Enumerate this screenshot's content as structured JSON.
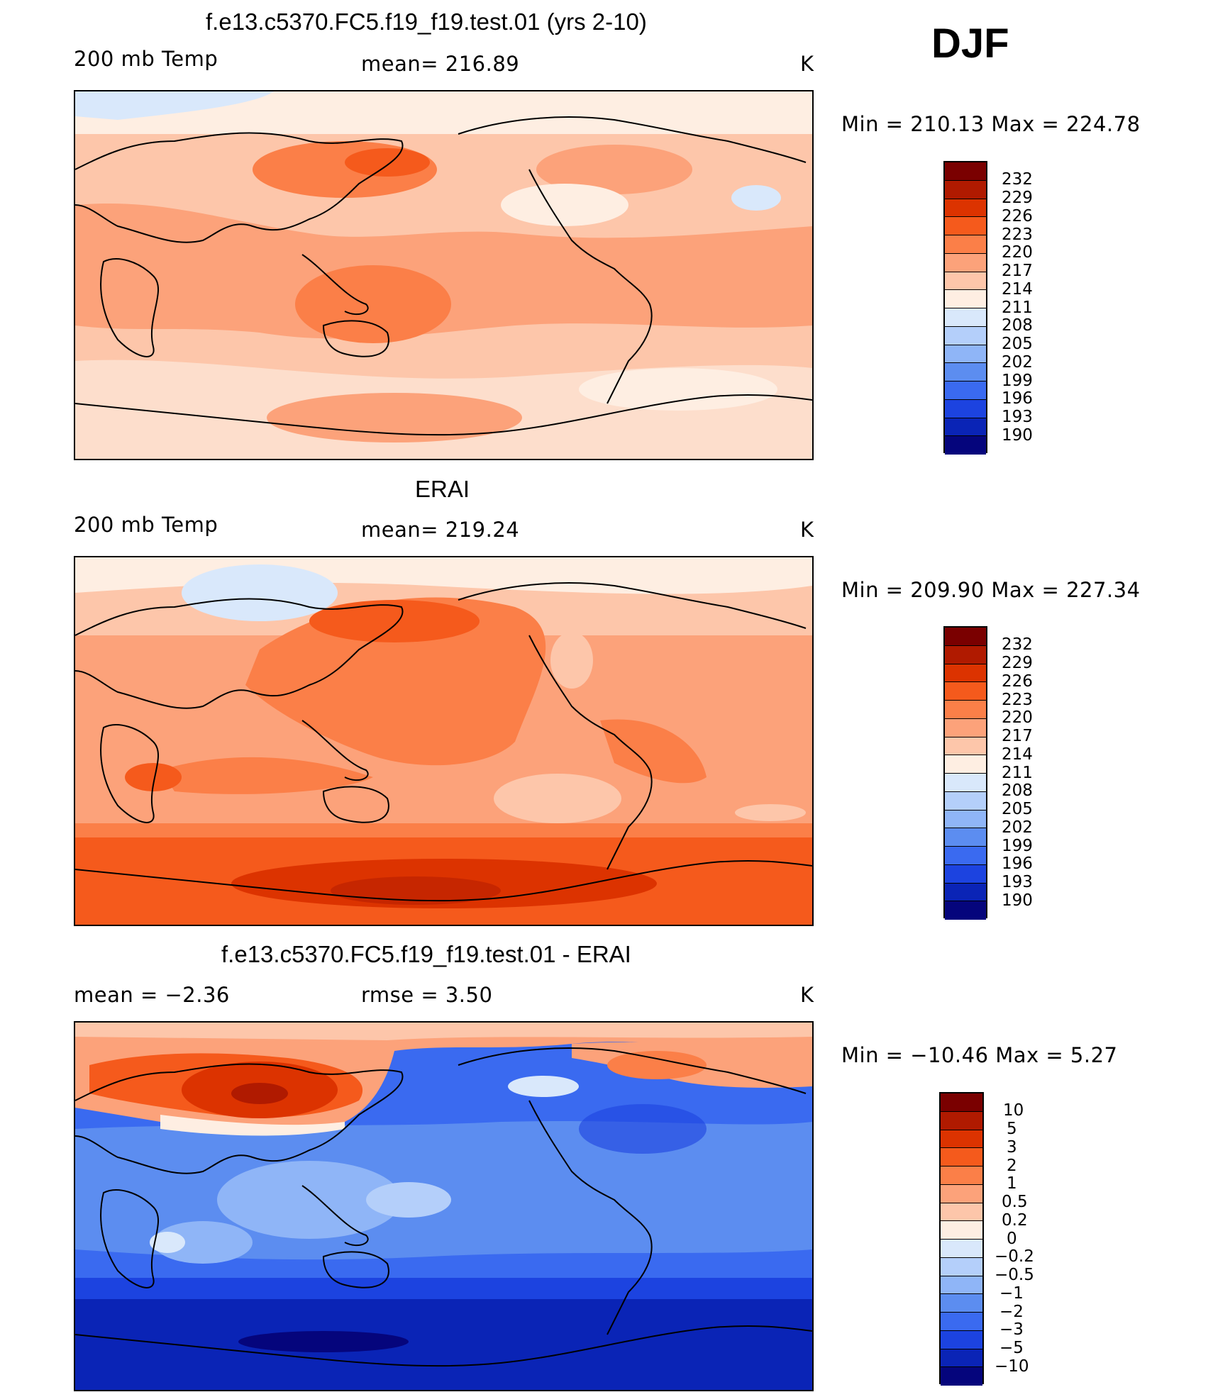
{
  "season": "DJF",
  "panels": [
    {
      "title": "f.e13.c5370.FC5.f19_f19.test.01 (yrs 2-10)",
      "left_label": "200 mb Temp",
      "center_label": "mean=  216.89",
      "units": "K",
      "minmax": "Min  =  210.13  Max  =  224.78",
      "colorbar": {
        "labels": [
          "232",
          "229",
          "226",
          "223",
          "220",
          "217",
          "214",
          "211",
          "208",
          "205",
          "202",
          "199",
          "196",
          "193",
          "190"
        ],
        "colors": [
          "#7a0000",
          "#b01a00",
          "#dc3300",
          "#f55a1c",
          "#fb7f48",
          "#fca27a",
          "#fdc6aa",
          "#feeee2",
          "#d9e8fb",
          "#b4cffa",
          "#8fb5f7",
          "#5c8df0",
          "#3a6af0",
          "#1c43e0",
          "#0a24b6",
          "#05057c"
        ]
      }
    },
    {
      "title": "ERAI",
      "left_label": "200 mb Temp",
      "center_label": "mean=  219.24",
      "units": "K",
      "minmax": "Min  =  209.90  Max  =  227.34",
      "colorbar": {
        "labels": [
          "232",
          "229",
          "226",
          "223",
          "220",
          "217",
          "214",
          "211",
          "208",
          "205",
          "202",
          "199",
          "196",
          "193",
          "190"
        ],
        "colors": [
          "#7a0000",
          "#b01a00",
          "#dc3300",
          "#f55a1c",
          "#fb7f48",
          "#fca27a",
          "#fdc6aa",
          "#feeee2",
          "#d9e8fb",
          "#b4cffa",
          "#8fb5f7",
          "#5c8df0",
          "#3a6af0",
          "#1c43e0",
          "#0a24b6",
          "#05057c"
        ]
      }
    },
    {
      "title": "f.e13.c5370.FC5.f19_f19.test.01 - ERAI",
      "left_label": "mean  =     −2.36",
      "center_label": "rmse  =      3.50",
      "units": "K",
      "minmax": "Min  =  −10.46  Max  =       5.27",
      "colorbar": {
        "labels": [
          "10",
          "5",
          "3",
          "2",
          "1",
          "0.5",
          "0.2",
          "0",
          "−0.2",
          "−0.5",
          "−1",
          "−2",
          "−3",
          "−5",
          "−10"
        ],
        "colors": [
          "#7a0000",
          "#b01a00",
          "#dc3300",
          "#f55a1c",
          "#fb7f48",
          "#fca27a",
          "#fdc6aa",
          "#feeee2",
          "#d9e8fb",
          "#b4cffa",
          "#8fb5f7",
          "#5c8df0",
          "#3a6af0",
          "#1c43e0",
          "#0a24b6",
          "#05057c"
        ]
      }
    }
  ]
}
